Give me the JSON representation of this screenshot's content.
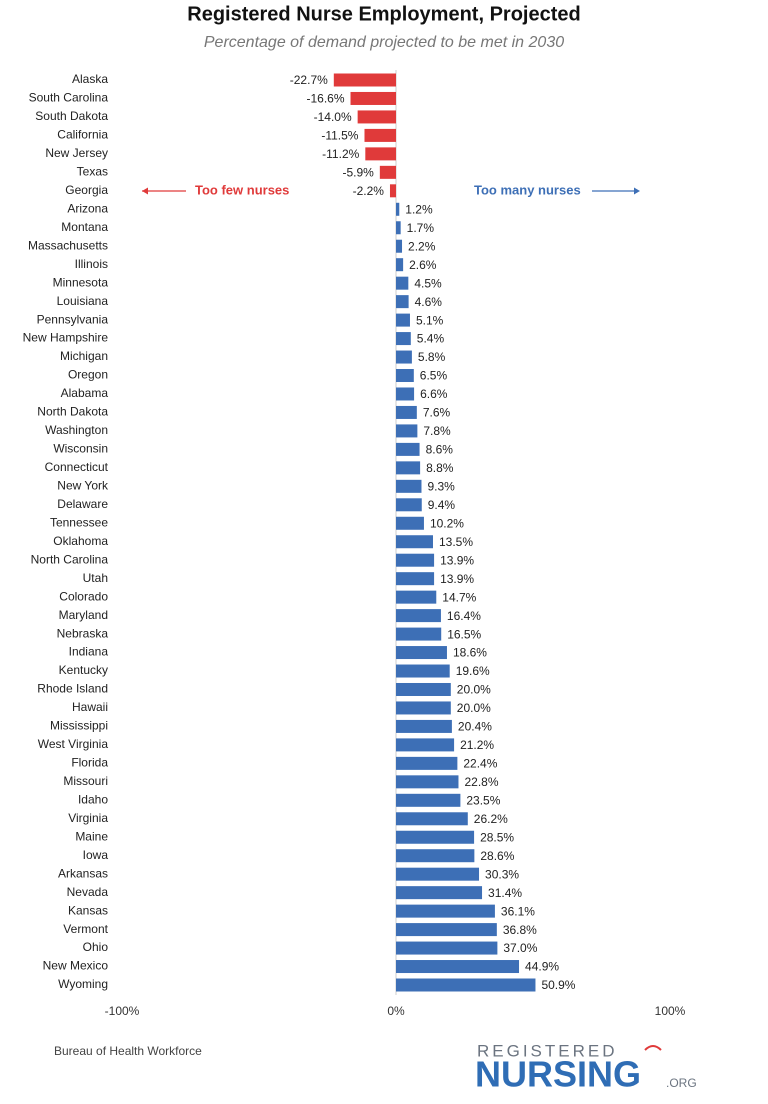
{
  "chart_data": {
    "type": "bar",
    "orientation": "horizontal",
    "title": "Registered Nurse Employment, Projected",
    "subtitle": "Percentage of demand projected to be met in 2030",
    "categories": [
      "Alaska",
      "South Carolina",
      "South Dakota",
      "California",
      "New Jersey",
      "Texas",
      "Georgia",
      "Arizona",
      "Montana",
      "Massachusetts",
      "Illinois",
      "Minnesota",
      "Louisiana",
      "Pennsylvania",
      "New Hampshire",
      "Michigan",
      "Oregon",
      "Alabama",
      "North Dakota",
      "Washington",
      "Wisconsin",
      "Connecticut",
      "New York",
      "Delaware",
      "Tennessee",
      "Oklahoma",
      "North Carolina",
      "Utah",
      "Colorado",
      "Maryland",
      "Nebraska",
      "Indiana",
      "Kentucky",
      "Rhode Island",
      "Hawaii",
      "Mississippi",
      "West Virginia",
      "Florida",
      "Missouri",
      "Idaho",
      "Virginia",
      "Maine",
      "Iowa",
      "Arkansas",
      "Nevada",
      "Kansas",
      "Vermont",
      "Ohio",
      "New Mexico",
      "Wyoming"
    ],
    "values": [
      -22.7,
      -16.6,
      -14.0,
      -11.5,
      -11.2,
      -5.9,
      -2.2,
      1.2,
      1.7,
      2.2,
      2.6,
      4.5,
      4.6,
      5.1,
      5.4,
      5.8,
      6.5,
      6.6,
      7.6,
      7.8,
      8.6,
      8.8,
      9.3,
      9.4,
      10.2,
      13.5,
      13.9,
      13.9,
      14.7,
      16.4,
      16.5,
      18.6,
      19.6,
      20.0,
      20.0,
      20.4,
      21.2,
      22.4,
      22.8,
      23.5,
      26.2,
      28.5,
      28.6,
      30.3,
      31.4,
      36.1,
      36.8,
      37.0,
      44.9,
      50.9
    ],
    "value_labels": [
      "-22.7%",
      "-16.6%",
      "-14.0%",
      "-11.5%",
      "-11.2%",
      "-5.9%",
      "-2.2%",
      "1.2%",
      "1.7%",
      "2.2%",
      "2.6%",
      "4.5%",
      "4.6%",
      "5.1%",
      "5.4%",
      "5.8%",
      "6.5%",
      "6.6%",
      "7.6%",
      "7.8%",
      "8.6%",
      "8.8%",
      "9.3%",
      "9.4%",
      "10.2%",
      "13.5%",
      "13.9%",
      "13.9%",
      "14.7%",
      "16.4%",
      "16.5%",
      "18.6%",
      "19.6%",
      "20.0%",
      "20.0%",
      "20.4%",
      "21.2%",
      "22.4%",
      "22.8%",
      "23.5%",
      "26.2%",
      "28.5%",
      "28.6%",
      "30.3%",
      "31.4%",
      "36.1%",
      "36.8%",
      "37.0%",
      "44.9%",
      "50.9%"
    ],
    "negative_color": "#e03a3a",
    "positive_color": "#3d6fb6",
    "xlim": [
      -100,
      100
    ],
    "xticks": [
      {
        "value": -100,
        "label": "-100%"
      },
      {
        "value": 0,
        "label": "0%"
      },
      {
        "value": 100,
        "label": "100%"
      }
    ],
    "annotations": [
      {
        "text": "Too few nurses",
        "color": "#e03a3a"
      },
      {
        "text": "Too many nurses",
        "color": "#3d6fb6"
      }
    ],
    "source": "Bureau of Health Workforce",
    "logo": {
      "top": "REGISTERED",
      "main": "NURSING",
      "suffix": ".ORG"
    }
  }
}
